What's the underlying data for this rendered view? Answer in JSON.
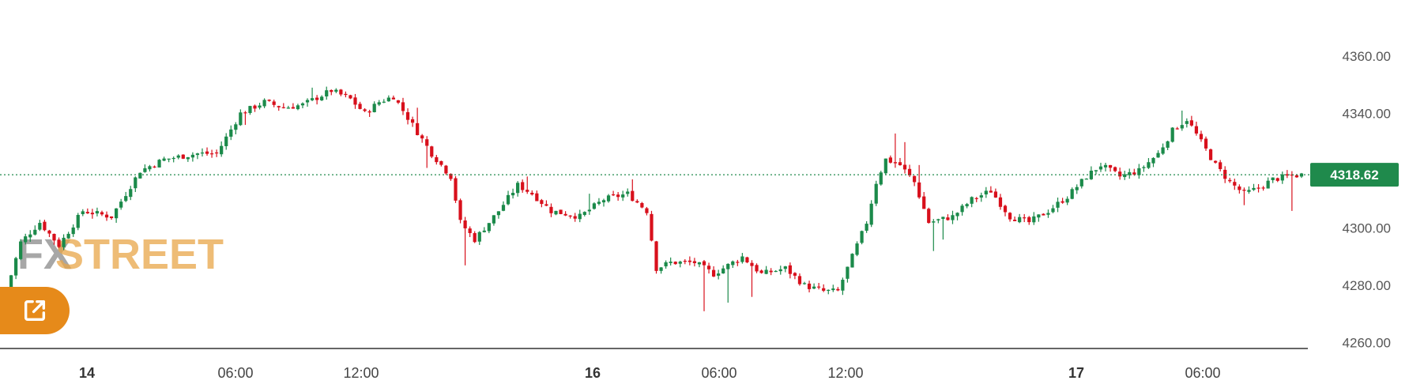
{
  "chart_data": {
    "type": "candlestick",
    "y_axis_position": "right",
    "yticks": [
      "4260.00",
      "4280.00",
      "4300.00",
      "4320.00",
      "4340.00",
      "4360.00"
    ],
    "ylim": [
      4258,
      4368
    ],
    "xticks": [
      {
        "label": "14",
        "bold": true
      },
      {
        "label": "06:00",
        "bold": false
      },
      {
        "label": "12:00",
        "bold": false
      },
      {
        "label": "16",
        "bold": true
      },
      {
        "label": "06:00",
        "bold": false
      },
      {
        "label": "12:00",
        "bold": false
      },
      {
        "label": "17",
        "bold": true
      },
      {
        "label": "06:00",
        "bold": false
      }
    ],
    "last_price": "4318.62",
    "last_price_value": 4318.62,
    "up_color": "#1b8a4a",
    "down_color": "#d8101c",
    "price_tag_color": "#1f8a4c",
    "close_path": [
      [
        0,
        4278
      ],
      [
        3,
        4295
      ],
      [
        7,
        4302
      ],
      [
        11,
        4294
      ],
      [
        16,
        4306
      ],
      [
        22,
        4304
      ],
      [
        28,
        4320
      ],
      [
        33,
        4324
      ],
      [
        40,
        4326
      ],
      [
        44,
        4326
      ],
      [
        49,
        4340
      ],
      [
        54,
        4344
      ],
      [
        58,
        4342
      ],
      [
        62,
        4343
      ],
      [
        68,
        4348
      ],
      [
        72,
        4345
      ],
      [
        75,
        4340
      ],
      [
        78,
        4344
      ],
      [
        81,
        4346
      ],
      [
        85,
        4336
      ],
      [
        89,
        4326
      ],
      [
        93,
        4318
      ],
      [
        95,
        4302
      ],
      [
        98,
        4296
      ],
      [
        103,
        4306
      ],
      [
        107,
        4315
      ],
      [
        110,
        4312
      ],
      [
        114,
        4306
      ],
      [
        120,
        4304
      ],
      [
        125,
        4310
      ],
      [
        130,
        4312
      ],
      [
        134,
        4306
      ],
      [
        136,
        4286
      ],
      [
        139,
        4288
      ],
      [
        144,
        4288
      ],
      [
        148,
        4284
      ],
      [
        154,
        4290
      ],
      [
        158,
        4284
      ],
      [
        163,
        4286
      ],
      [
        167,
        4280
      ],
      [
        171,
        4278
      ],
      [
        174,
        4278
      ],
      [
        177,
        4290
      ],
      [
        180,
        4302
      ],
      [
        182,
        4316
      ],
      [
        184,
        4324
      ],
      [
        187,
        4322
      ],
      [
        190,
        4316
      ],
      [
        193,
        4302
      ],
      [
        198,
        4304
      ],
      [
        202,
        4310
      ],
      [
        206,
        4313
      ],
      [
        210,
        4304
      ],
      [
        214,
        4302
      ],
      [
        218,
        4306
      ],
      [
        222,
        4311
      ],
      [
        226,
        4318
      ],
      [
        229,
        4322
      ],
      [
        233,
        4318
      ],
      [
        237,
        4320
      ],
      [
        241,
        4326
      ],
      [
        244,
        4334
      ],
      [
        247,
        4338
      ],
      [
        250,
        4330
      ],
      [
        253,
        4322
      ],
      [
        256,
        4316
      ],
      [
        259,
        4312
      ],
      [
        262,
        4314
      ],
      [
        265,
        4317
      ],
      [
        268,
        4318
      ],
      [
        271,
        4318.62
      ]
    ],
    "wick_spikes": [
      [
        50,
        4336
      ],
      [
        64,
        4349
      ],
      [
        86,
        4342
      ],
      [
        88,
        4321
      ],
      [
        96,
        4287
      ],
      [
        109,
        4318
      ],
      [
        111,
        4310
      ],
      [
        122,
        4312
      ],
      [
        131,
        4317
      ],
      [
        146,
        4271
      ],
      [
        151,
        4274
      ],
      [
        156,
        4276
      ],
      [
        186,
        4333
      ],
      [
        188,
        4330
      ],
      [
        191,
        4322
      ],
      [
        194,
        4292
      ],
      [
        196,
        4296
      ],
      [
        246,
        4341
      ],
      [
        259,
        4308
      ],
      [
        269,
        4306
      ]
    ]
  },
  "watermark": {
    "part1": "FX",
    "part2": "STREET"
  },
  "popout_button": {
    "icon": "external-link-icon",
    "color": "#e68a1a"
  }
}
